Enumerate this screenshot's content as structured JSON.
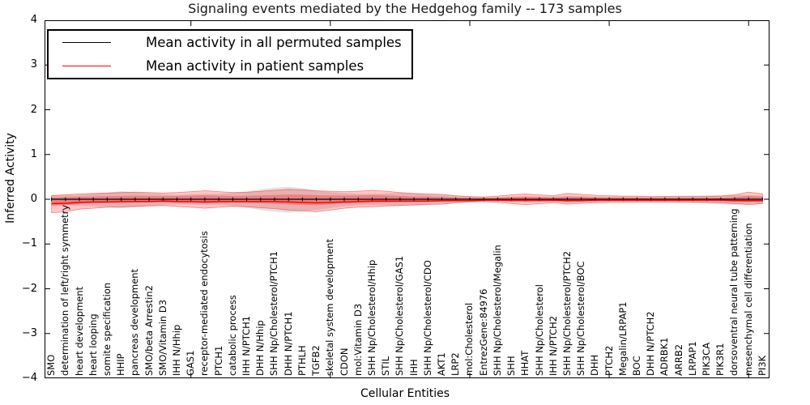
{
  "title": "Signaling events mediated by the Hedgehog family -- 173 samples",
  "axes": {
    "xlabel": "Cellular Entities",
    "ylabel": "Inferred Activity",
    "yticks": [
      "4",
      "3",
      "2",
      "1",
      "0",
      "−1",
      "−2",
      "−3",
      "−4"
    ],
    "ylim": [
      -4,
      4
    ]
  },
  "legend": {
    "position": "upper left",
    "items": [
      {
        "label": "Mean activity in all permuted samples",
        "color": "#000000"
      },
      {
        "label": "Mean activity in patient samples",
        "color": "#ff0000"
      }
    ]
  },
  "chart_data": {
    "type": "line",
    "title": "Signaling events mediated by the Hedgehog family -- 173 samples",
    "xlabel": "Cellular Entities",
    "ylabel": "Inferred Activity",
    "ylim": [
      -4,
      4
    ],
    "grid": false,
    "legend_position": "upper left",
    "sample_count": 173,
    "categories": [
      "SMO",
      "determination of left/right symmetry",
      "heart development",
      "heart looping",
      "somite specification",
      "HHIP",
      "pancreas development",
      "SMO/beta Arrestin2",
      "SMO/Vitamin D3",
      "IHH N/Hhip",
      "GAS1",
      "receptor-mediated endocytosis",
      "PTCH1",
      "catabolic process",
      "IHH N/PTCH1",
      "DHH N/Hhip",
      "SHH Np/Cholesterol/PTCH1",
      "DHH N/PTCH1",
      "PTHLH",
      "TGFB2",
      "skeletal system development",
      "CDON",
      "mol:Vitamin D3",
      "SHH Np/Cholesterol/Hhip",
      "STIL",
      "SHH Np/Cholesterol/GAS1",
      "IHH",
      "SHH Np/Cholesterol/CDO",
      "AKT1",
      "LRP2",
      "mol:Cholesterol",
      "EntrezGene:84976",
      "SHH Np/Cholesterol/Megalin",
      "SHH",
      "HHAT",
      "SHH Np/Cholesterol",
      "IHH N/PTCH2",
      "SHH Np/Cholesterol/PTCH2",
      "SHH Np/Cholesterol/BOC",
      "DHH",
      "PTCH2",
      "Megalin/LRPAP1",
      "BOC",
      "DHH N/PTCH2",
      "ADRBK1",
      "ARRB2",
      "LRPAP1",
      "PIK3CA",
      "PIK3R1",
      "dorsoventral neural tube patterning",
      "mesenchymal cell differentiation",
      "PI3K"
    ],
    "series": [
      {
        "name": "Mean activity in all permuted samples",
        "color": "#000000",
        "marker": "|",
        "values": [
          0,
          0,
          0,
          0,
          0,
          0,
          0,
          0,
          0,
          0,
          0,
          0,
          0,
          0,
          0,
          0,
          0,
          0,
          0,
          0,
          0,
          0,
          0,
          0,
          0,
          0,
          0,
          0,
          0,
          0,
          0,
          0,
          0,
          0,
          0,
          0,
          0,
          0,
          0,
          0,
          0,
          0,
          0,
          0,
          0,
          0,
          0,
          0,
          0,
          0,
          0,
          0
        ]
      },
      {
        "name": "Mean activity in patient samples",
        "color": "#ff0000",
        "values": [
          -0.1,
          -0.09,
          -0.07,
          -0.06,
          -0.06,
          -0.05,
          -0.05,
          -0.05,
          -0.04,
          -0.05,
          -0.05,
          -0.06,
          -0.05,
          -0.05,
          -0.05,
          -0.05,
          -0.05,
          -0.06,
          -0.07,
          -0.08,
          -0.07,
          -0.06,
          -0.05,
          -0.04,
          -0.04,
          -0.04,
          -0.04,
          -0.04,
          -0.03,
          -0.03,
          -0.03,
          -0.02,
          -0.02,
          -0.02,
          -0.02,
          -0.02,
          -0.02,
          -0.03,
          -0.03,
          -0.02,
          -0.02,
          -0.02,
          -0.02,
          -0.02,
          -0.02,
          -0.02,
          -0.02,
          -0.02,
          -0.02,
          -0.03,
          -0.03,
          -0.03
        ]
      }
    ],
    "bands": [
      {
        "name": "permuted samples spread",
        "color": "#bfbfbf",
        "opacity": 0.45,
        "upper": [
          0.1,
          0.1,
          0.1,
          0.12,
          0.15,
          0.18,
          0.16,
          0.13,
          0.11,
          0.1,
          0.11,
          0.12,
          0.12,
          0.14,
          0.17,
          0.22,
          0.26,
          0.28,
          0.25,
          0.2,
          0.16,
          0.14,
          0.12,
          0.12,
          0.13,
          0.14,
          0.13,
          0.11,
          0.1,
          0.08,
          0.06,
          0.05,
          0.05,
          0.06,
          0.06,
          0.06,
          0.06,
          0.07,
          0.07,
          0.06,
          0.06,
          0.06,
          0.06,
          0.06,
          0.07,
          0.08,
          0.08,
          0.09,
          0.1,
          0.1,
          0.09,
          0.08
        ],
        "lower": [
          -0.12,
          -0.12,
          -0.14,
          -0.16,
          -0.18,
          -0.2,
          -0.18,
          -0.15,
          -0.12,
          -0.11,
          -0.12,
          -0.13,
          -0.13,
          -0.15,
          -0.19,
          -0.24,
          -0.28,
          -0.3,
          -0.27,
          -0.24,
          -0.2,
          -0.16,
          -0.14,
          -0.13,
          -0.13,
          -0.14,
          -0.13,
          -0.11,
          -0.1,
          -0.08,
          -0.06,
          -0.05,
          -0.05,
          -0.06,
          -0.06,
          -0.06,
          -0.06,
          -0.07,
          -0.07,
          -0.06,
          -0.06,
          -0.06,
          -0.06,
          -0.06,
          -0.07,
          -0.08,
          -0.09,
          -0.1,
          -0.11,
          -0.12,
          -0.11,
          -0.1
        ]
      },
      {
        "name": "patient samples spread",
        "color": "#ff0000",
        "opacity": 0.22,
        "upper": [
          0.08,
          0.1,
          0.12,
          0.13,
          0.14,
          0.15,
          0.16,
          0.15,
          0.14,
          0.15,
          0.17,
          0.19,
          0.17,
          0.15,
          0.16,
          0.18,
          0.2,
          0.22,
          0.21,
          0.19,
          0.18,
          0.17,
          0.18,
          0.2,
          0.18,
          0.15,
          0.13,
          0.12,
          0.11,
          0.08,
          0.06,
          0.05,
          0.07,
          0.1,
          0.12,
          0.1,
          0.08,
          0.13,
          0.11,
          0.09,
          0.08,
          0.07,
          0.07,
          0.06,
          0.06,
          0.06,
          0.06,
          0.06,
          0.07,
          0.1,
          0.16,
          0.12
        ],
        "lower": [
          -0.3,
          -0.28,
          -0.22,
          -0.2,
          -0.18,
          -0.17,
          -0.16,
          -0.15,
          -0.14,
          -0.16,
          -0.18,
          -0.2,
          -0.18,
          -0.16,
          -0.17,
          -0.19,
          -0.21,
          -0.24,
          -0.26,
          -0.28,
          -0.24,
          -0.2,
          -0.18,
          -0.17,
          -0.15,
          -0.14,
          -0.13,
          -0.12,
          -0.11,
          -0.08,
          -0.06,
          -0.05,
          -0.07,
          -0.1,
          -0.12,
          -0.1,
          -0.08,
          -0.11,
          -0.09,
          -0.08,
          -0.07,
          -0.07,
          -0.06,
          -0.06,
          -0.06,
          -0.06,
          -0.06,
          -0.07,
          -0.08,
          -0.1,
          -0.12,
          -0.1
        ]
      }
    ]
  }
}
